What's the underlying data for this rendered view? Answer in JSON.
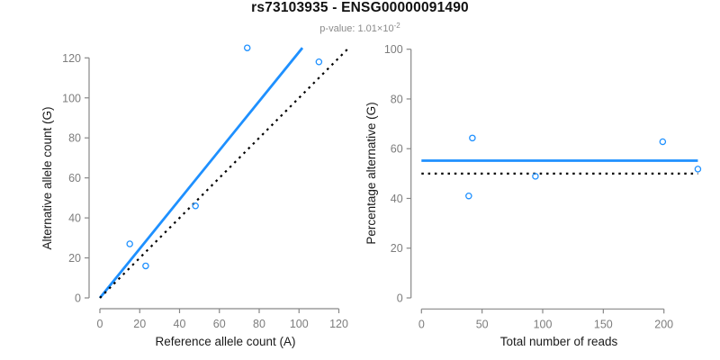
{
  "header": {
    "title": "rs73103935 - ENSG00000091490",
    "subtitle_prefix": "p-value: 1.01×10",
    "subtitle_exponent": "-2"
  },
  "colors": {
    "accent_blue": "#1E90FF",
    "line_black": "#000000",
    "axis_gray": "#878787",
    "tick_label_gray": "#7d7d7d",
    "axis_title_black": "#1a1a1a"
  },
  "chart_data": [
    {
      "type": "scatter",
      "name": "allele-counts-plot",
      "xlabel": "Reference allele count (A)",
      "ylabel": "Alternative allele count (G)",
      "xlim": [
        0,
        125.5
      ],
      "ylim": [
        0,
        125.5
      ],
      "xticks": [
        0,
        20,
        40,
        60,
        80,
        100,
        120
      ],
      "yticks": [
        0,
        20,
        40,
        60,
        80,
        100,
        120
      ],
      "grid": false,
      "legend": false,
      "points": [
        [
          15,
          27
        ],
        [
          23,
          16
        ],
        [
          48,
          46
        ],
        [
          74,
          125
        ],
        [
          110,
          118
        ]
      ],
      "lines": [
        {
          "name": "fit-line",
          "style": "solid",
          "color_key": "accent_blue",
          "x1": 0,
          "y1": 0,
          "x2": 101.7,
          "y2": 125
        },
        {
          "name": "identity-line",
          "style": "dotted",
          "color_key": "line_black",
          "x1": 0,
          "y1": 0,
          "x2": 125.4,
          "y2": 125.4
        }
      ]
    },
    {
      "type": "scatter",
      "name": "percentage-plot",
      "xlabel": "Total number of reads",
      "ylabel": "Percentage alternative (G)",
      "xlim": [
        -9,
        237
      ],
      "ylim": [
        0,
        100
      ],
      "xticks": [
        0,
        50,
        100,
        150,
        200
      ],
      "yticks": [
        0,
        20,
        40,
        60,
        80,
        100
      ],
      "grid": false,
      "legend": false,
      "points": [
        [
          42,
          64.3
        ],
        [
          39,
          41
        ],
        [
          94,
          48.9
        ],
        [
          199,
          62.8
        ],
        [
          228,
          51.8
        ]
      ],
      "lines": [
        {
          "name": "mean-percentage-line",
          "style": "solid",
          "color_key": "accent_blue",
          "x1": 0,
          "y1": 55.2,
          "x2": 228,
          "y2": 55.2
        },
        {
          "name": "expected-50-line",
          "style": "dotted",
          "color_key": "line_black",
          "x1": 0,
          "y1": 50,
          "x2": 228,
          "y2": 50
        }
      ]
    }
  ]
}
